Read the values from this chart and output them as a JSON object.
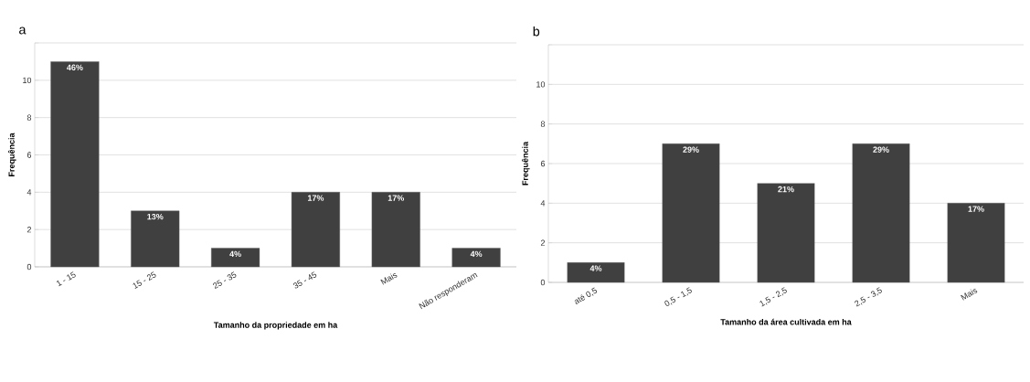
{
  "chart_data": [
    {
      "type": "bar",
      "title": "a",
      "xlabel": "Tamanho da propriedade em ha",
      "ylabel": "Frequência",
      "categories": [
        "1 - 15",
        "15 - 25",
        "25 - 35",
        "35 - 45",
        "Mais",
        "Não responderam"
      ],
      "values": [
        11,
        3,
        1,
        4,
        4,
        1
      ],
      "color": "#404040",
      "annotations": [
        {
          "text": "46%",
          "x": "1 - 15",
          "y": 11
        },
        {
          "text": "13%",
          "x": "15 - 25",
          "y": 3
        },
        {
          "text": "4%",
          "x": "25 - 35",
          "y": 1
        },
        {
          "text": "17%",
          "x": "35 - 45",
          "y": 4
        },
        {
          "text": "17%",
          "x": "Mais",
          "y": 4
        },
        {
          "text": "4%",
          "x": "Não responderam",
          "y": 1
        }
      ],
      "ylim": [
        0,
        12
      ],
      "yticks": [
        0,
        2,
        4,
        6,
        8,
        10,
        {
          "value": 12,
          "label": null
        }
      ],
      "grid": "y"
    },
    {
      "type": "bar",
      "title": "b",
      "xlabel": "Tamanho da área  cultivada em ha",
      "ylabel": "Frequência",
      "categories": [
        "até 0,5",
        "0,5 - 1,5",
        "1,5 - 2,5",
        "2,5 - 3,5",
        "Mais"
      ],
      "values": [
        1,
        7,
        5,
        7,
        4
      ],
      "color": "#404040",
      "annotations": [
        {
          "text": "4%",
          "x": "até 0,5",
          "y": 1
        },
        {
          "text": "29%",
          "x": "0,5 - 1,5",
          "y": 7
        },
        {
          "text": "21%",
          "x": "1,5 - 2,5",
          "y": 5
        },
        {
          "text": "29%",
          "x": "2,5 - 3,5",
          "y": 7
        },
        {
          "text": "17%",
          "x": "Mais",
          "y": 4
        }
      ],
      "ylim": [
        0,
        12
      ],
      "yticks": [
        0,
        2,
        4,
        6,
        8,
        10,
        {
          "value": 12,
          "label": null
        }
      ],
      "grid": "y"
    }
  ]
}
